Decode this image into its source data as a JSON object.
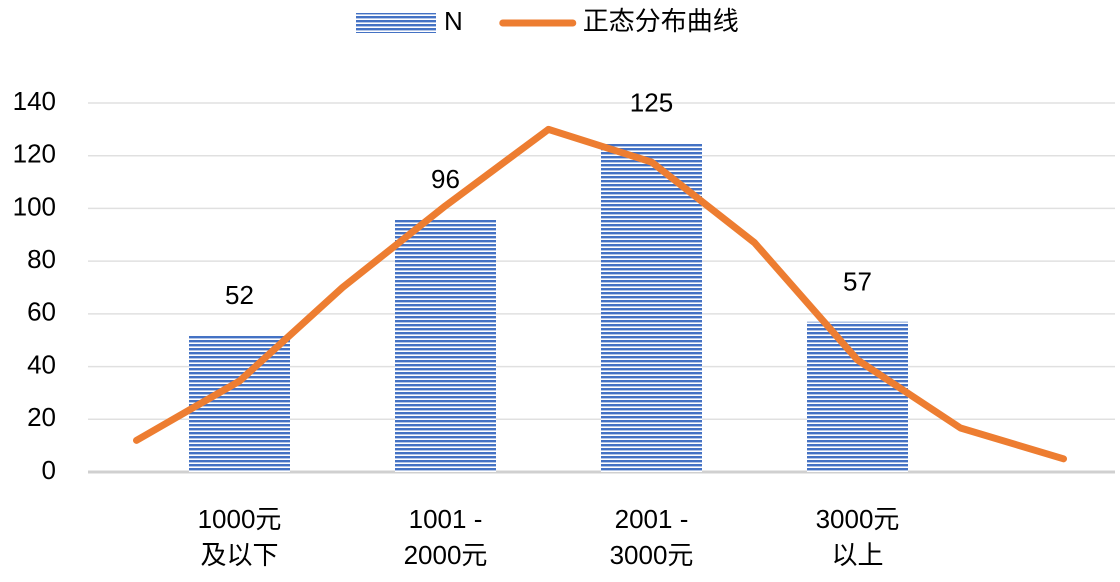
{
  "chart_data": {
    "type": "bar_line",
    "categories": [
      null,
      [
        "1000元",
        "及以下"
      ],
      null,
      [
        "1001 -",
        "2000元"
      ],
      null,
      [
        "2001 -",
        "3000元"
      ],
      null,
      [
        "3000元",
        "以上"
      ],
      null,
      null
    ],
    "series": [
      {
        "name": "N",
        "type": "bar",
        "color": "#4472c4",
        "values": [
          null,
          52,
          null,
          96,
          null,
          125,
          null,
          57,
          null,
          null
        ]
      },
      {
        "name": "正态分布曲线",
        "type": "line",
        "color": "#ed7d31",
        "values": [
          12,
          34.5,
          70,
          101,
          130,
          117.6,
          87,
          42.5,
          16.7,
          5
        ]
      }
    ],
    "ylim": [
      0,
      140
    ],
    "yticks": [
      0,
      20,
      40,
      60,
      80,
      100,
      120,
      140
    ],
    "grid": true,
    "legend": "top"
  }
}
